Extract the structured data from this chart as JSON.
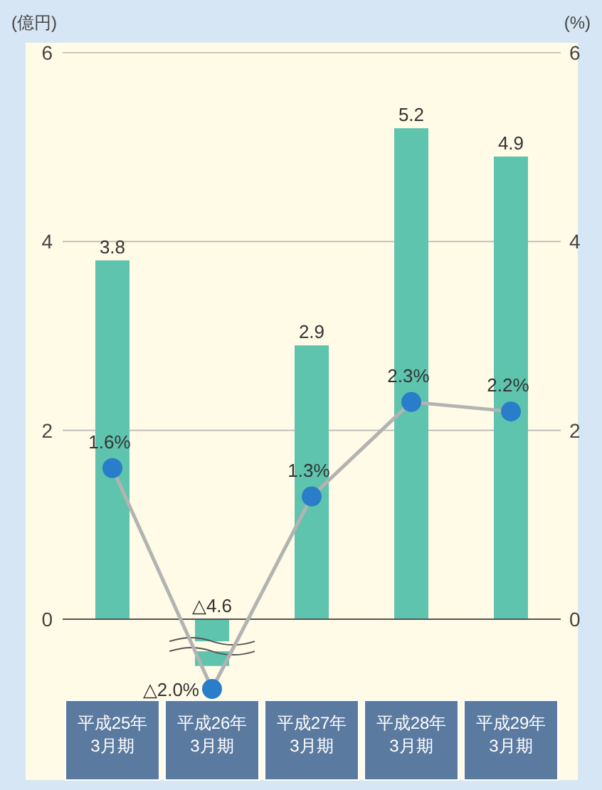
{
  "chart_data": {
    "type": "bar",
    "ylabel": "(億円)",
    "y2label": "(%)",
    "categories": [
      "平成25年\n3月期",
      "平成26年\n3月期",
      "平成27年\n3月期",
      "平成28年\n3月期",
      "平成29年\n3月期"
    ],
    "series": [
      {
        "color": "#5ec4ae",
        "values": [
          3.8,
          null,
          2.9,
          5.2,
          4.9
        ],
        "value_labels": [
          "3.8",
          "△4.6",
          "2.9",
          "5.2",
          "4.9"
        ]
      },
      {
        "type": "line",
        "axis": "y2",
        "color": "#b3b3b3",
        "colors": [
          "#2a7dc8",
          "#2a7dc8",
          "#2a7dc8",
          "#2a7dc8",
          "#2a7dc8"
        ],
        "marker": "circle",
        "values": [
          1.6,
          null,
          1.3,
          2.3,
          2.2
        ],
        "value_labels": [
          "1.6%",
          "△2.0%",
          "1.3%",
          "2.3%",
          "2.2%"
        ]
      }
    ],
    "ylim": [
      0,
      6
    ],
    "yticks": [
      0,
      2,
      4,
      6
    ],
    "y2lim": [
      0,
      6
    ],
    "y2ticks": [
      0,
      2,
      4,
      6
    ],
    "grid": "y"
  }
}
